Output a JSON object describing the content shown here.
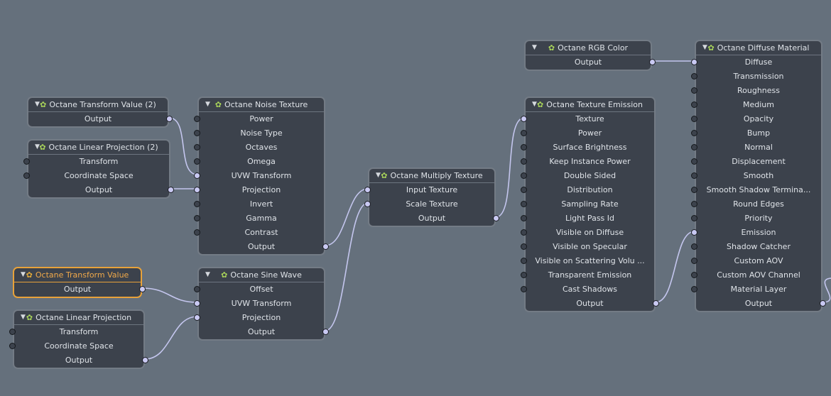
{
  "colors": {
    "canvas": "#65707c",
    "node_bg": "#3c424c",
    "node_border": "#737b85",
    "selected": "#e8a23a",
    "wire": "#c4c6ee",
    "gear": "#a8d35a"
  },
  "icons": {
    "collapse": "triangle-down-icon",
    "node": "gear-icon"
  },
  "nodes": [
    {
      "id": "tv2",
      "title": "Octane Transform Value (2)",
      "selected": false,
      "rows": [
        {
          "label": "Output",
          "type": "out"
        }
      ]
    },
    {
      "id": "lp2",
      "title": "Octane Linear Projection (2)",
      "selected": false,
      "rows": [
        {
          "label": "Transform",
          "type": "in"
        },
        {
          "label": "Coordinate Space",
          "type": "in"
        },
        {
          "label": "Output",
          "type": "out"
        }
      ]
    },
    {
      "id": "noise",
      "title": "Octane Noise Texture",
      "selected": false,
      "rows": [
        {
          "label": "Power",
          "type": "in"
        },
        {
          "label": "Noise Type",
          "type": "in"
        },
        {
          "label": "Octaves",
          "type": "in"
        },
        {
          "label": "Omega",
          "type": "in"
        },
        {
          "label": "UVW Transform",
          "type": "in",
          "connected": true
        },
        {
          "label": "Projection",
          "type": "in",
          "connected": true
        },
        {
          "label": "Invert",
          "type": "in"
        },
        {
          "label": "Gamma",
          "type": "in"
        },
        {
          "label": "Contrast",
          "type": "in"
        },
        {
          "label": "Output",
          "type": "out"
        }
      ]
    },
    {
      "id": "tv",
      "title": "Octane Transform Value",
      "selected": true,
      "rows": [
        {
          "label": "Output",
          "type": "out"
        }
      ]
    },
    {
      "id": "lp",
      "title": "Octane Linear Projection",
      "selected": false,
      "rows": [
        {
          "label": "Transform",
          "type": "in"
        },
        {
          "label": "Coordinate Space",
          "type": "in"
        },
        {
          "label": "Output",
          "type": "out"
        }
      ]
    },
    {
      "id": "sine",
      "title": "Octane Sine Wave",
      "selected": false,
      "rows": [
        {
          "label": "Offset",
          "type": "in"
        },
        {
          "label": "UVW Transform",
          "type": "in",
          "connected": true
        },
        {
          "label": "Projection",
          "type": "in",
          "connected": true
        },
        {
          "label": "Output",
          "type": "out"
        }
      ]
    },
    {
      "id": "mult",
      "title": "Octane Multiply Texture",
      "selected": false,
      "rows": [
        {
          "label": "Input Texture",
          "type": "in",
          "connected": true
        },
        {
          "label": "Scale Texture",
          "type": "in",
          "connected": true
        },
        {
          "label": "Output",
          "type": "out"
        }
      ]
    },
    {
      "id": "rgb",
      "title": "Octane RGB Color",
      "selected": false,
      "rows": [
        {
          "label": "Output",
          "type": "out"
        }
      ]
    },
    {
      "id": "emis",
      "title": "Octane Texture Emission",
      "selected": false,
      "rows": [
        {
          "label": "Texture",
          "type": "in",
          "connected": true
        },
        {
          "label": "Power",
          "type": "in"
        },
        {
          "label": "Surface Brightness",
          "type": "in"
        },
        {
          "label": "Keep Instance Power",
          "type": "in"
        },
        {
          "label": "Double Sided",
          "type": "in"
        },
        {
          "label": "Distribution",
          "type": "in"
        },
        {
          "label": "Sampling Rate",
          "type": "in"
        },
        {
          "label": "Light Pass Id",
          "type": "in"
        },
        {
          "label": "Visible on Diffuse",
          "type": "in"
        },
        {
          "label": "Visible on Specular",
          "type": "in"
        },
        {
          "label": "Visible on Scattering Volu ...",
          "type": "in"
        },
        {
          "label": "Transparent Emission",
          "type": "in"
        },
        {
          "label": "Cast Shadows",
          "type": "in"
        },
        {
          "label": "Output",
          "type": "out"
        }
      ]
    },
    {
      "id": "diff",
      "title": "Octane Diffuse Material",
      "selected": false,
      "rows": [
        {
          "label": "Diffuse",
          "type": "in",
          "connected": true
        },
        {
          "label": "Transmission",
          "type": "in"
        },
        {
          "label": "Roughness",
          "type": "in"
        },
        {
          "label": "Medium",
          "type": "in"
        },
        {
          "label": "Opacity",
          "type": "in"
        },
        {
          "label": "Bump",
          "type": "in"
        },
        {
          "label": "Normal",
          "type": "in"
        },
        {
          "label": "Displacement",
          "type": "in"
        },
        {
          "label": "Smooth",
          "type": "in"
        },
        {
          "label": "Smooth Shadow Termina...",
          "type": "in"
        },
        {
          "label": "Round Edges",
          "type": "in"
        },
        {
          "label": "Priority",
          "type": "in"
        },
        {
          "label": "Emission",
          "type": "in",
          "connected": true
        },
        {
          "label": "Shadow Catcher",
          "type": "in"
        },
        {
          "label": "Custom AOV",
          "type": "in"
        },
        {
          "label": "Custom AOV Channel",
          "type": "in"
        },
        {
          "label": "Material Layer",
          "type": "in"
        },
        {
          "label": "Output",
          "type": "out"
        }
      ]
    }
  ],
  "connections": [
    {
      "from": "tv2.Output",
      "to": "noise.UVW Transform"
    },
    {
      "from": "lp2.Output",
      "to": "noise.Projection"
    },
    {
      "from": "tv.Output",
      "to": "sine.UVW Transform"
    },
    {
      "from": "lp.Output",
      "to": "sine.Projection"
    },
    {
      "from": "noise.Output",
      "to": "mult.Input Texture"
    },
    {
      "from": "sine.Output",
      "to": "mult.Scale Texture"
    },
    {
      "from": "mult.Output",
      "to": "emis.Texture"
    },
    {
      "from": "rgb.Output",
      "to": "diff.Diffuse"
    },
    {
      "from": "emis.Output",
      "to": "diff.Emission"
    },
    {
      "from": "diff.Output",
      "to": "offscreen"
    }
  ]
}
